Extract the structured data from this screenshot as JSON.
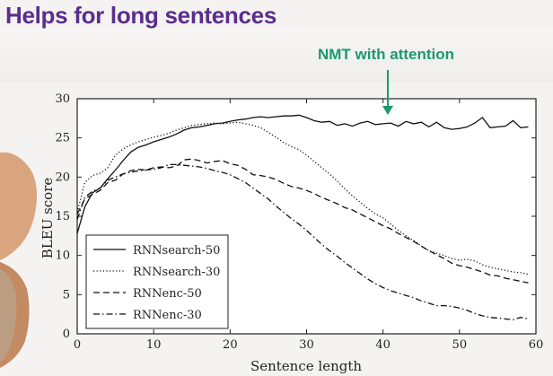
{
  "slide": {
    "title": "Helps for long sentences"
  },
  "colors": {
    "title": "#5b2d8e",
    "callout": "#1a9a6c",
    "line": "#111111",
    "background": "#f4f3f1"
  },
  "chart_data": {
    "type": "line",
    "title": "",
    "xlabel": "Sentence length",
    "ylabel": "BLEU score",
    "xlim": [
      0,
      60
    ],
    "ylim": [
      0,
      30
    ],
    "xticks": [
      0,
      10,
      20,
      30,
      40,
      50,
      60
    ],
    "yticks": [
      0,
      5,
      10,
      15,
      20,
      25,
      30
    ],
    "grid": false,
    "legend_position": "bottom-left",
    "annotation": {
      "text": "NMT with attention",
      "x": 41,
      "y": 27
    },
    "series": [
      {
        "name": "RNNsearch-50",
        "style": "solid",
        "x": [
          0,
          1,
          2,
          3,
          4,
          5,
          6,
          7,
          8,
          9,
          10,
          11,
          12,
          13,
          14,
          15,
          16,
          17,
          18,
          19,
          20,
          21,
          22,
          23,
          24,
          25,
          26,
          27,
          28,
          29,
          30,
          31,
          32,
          33,
          34,
          35,
          36,
          37,
          38,
          39,
          40,
          41,
          42,
          43,
          44,
          45,
          46,
          47,
          48,
          49,
          50,
          51,
          52,
          53,
          54,
          55,
          56,
          57,
          58,
          59
        ],
        "y": [
          12.8,
          16.2,
          18.0,
          18.6,
          19.8,
          20.9,
          22.1,
          23.2,
          23.8,
          24.1,
          24.5,
          24.8,
          25.1,
          25.5,
          26.0,
          26.3,
          26.4,
          26.6,
          26.8,
          26.9,
          27.1,
          27.3,
          27.4,
          27.6,
          27.7,
          27.6,
          27.7,
          27.8,
          27.8,
          27.9,
          27.6,
          27.2,
          27.0,
          27.1,
          26.6,
          26.8,
          26.5,
          26.9,
          27.1,
          26.7,
          26.8,
          26.9,
          26.5,
          27.1,
          26.8,
          27.0,
          26.4,
          27.0,
          26.3,
          26.1,
          26.2,
          26.4,
          26.9,
          27.6,
          26.3,
          26.4,
          26.5,
          27.2,
          26.3,
          26.4
        ]
      },
      {
        "name": "RNNsearch-30",
        "style": "dotted",
        "x": [
          0,
          1,
          2,
          3,
          4,
          5,
          6,
          7,
          8,
          9,
          10,
          11,
          12,
          13,
          14,
          15,
          16,
          17,
          18,
          19,
          20,
          21,
          22,
          23,
          24,
          25,
          26,
          27,
          28,
          29,
          30,
          31,
          32,
          33,
          34,
          35,
          36,
          37,
          38,
          39,
          40,
          41,
          42,
          43,
          44,
          45,
          46,
          47,
          48,
          49,
          50,
          51,
          52,
          53,
          54,
          55,
          56,
          57,
          58,
          59
        ],
        "y": [
          15.5,
          19.3,
          20.2,
          20.5,
          21.2,
          22.8,
          23.6,
          24.1,
          24.5,
          24.8,
          25.1,
          25.3,
          25.6,
          26.0,
          26.3,
          26.6,
          26.7,
          26.8,
          26.9,
          26.8,
          26.9,
          27.0,
          26.8,
          26.6,
          26.3,
          25.7,
          25.1,
          24.4,
          23.9,
          23.5,
          22.8,
          22.0,
          21.2,
          20.4,
          19.5,
          18.5,
          17.6,
          16.8,
          16.0,
          15.3,
          14.8,
          14.0,
          13.2,
          12.5,
          11.9,
          11.2,
          10.6,
          10.3,
          10.0,
          9.6,
          9.4,
          9.5,
          9.3,
          8.8,
          8.5,
          8.3,
          8.1,
          7.9,
          7.8,
          7.6
        ]
      },
      {
        "name": "RNNenc-50",
        "style": "dashed",
        "x": [
          0,
          1,
          2,
          3,
          4,
          5,
          6,
          7,
          8,
          9,
          10,
          11,
          12,
          13,
          14,
          15,
          16,
          17,
          18,
          19,
          20,
          21,
          22,
          23,
          24,
          25,
          26,
          27,
          28,
          29,
          30,
          31,
          32,
          33,
          34,
          35,
          36,
          37,
          38,
          39,
          40,
          41,
          42,
          43,
          44,
          45,
          46,
          47,
          48,
          49,
          50,
          51,
          52,
          53,
          54,
          55,
          56,
          57,
          58,
          59
        ],
        "y": [
          15.3,
          17.2,
          17.8,
          18.3,
          19.3,
          19.6,
          20.4,
          20.8,
          21.0,
          20.9,
          21.2,
          21.3,
          21.2,
          21.4,
          22.2,
          22.3,
          22.1,
          21.8,
          22.0,
          22.1,
          21.7,
          21.5,
          21.0,
          20.3,
          20.2,
          20.0,
          19.7,
          19.2,
          18.8,
          18.6,
          18.3,
          17.9,
          17.4,
          17.0,
          16.6,
          16.1,
          15.8,
          15.3,
          14.8,
          14.3,
          13.8,
          13.4,
          12.8,
          12.3,
          11.8,
          11.2,
          10.6,
          10.1,
          9.6,
          9.0,
          8.7,
          8.5,
          8.2,
          7.9,
          7.5,
          7.4,
          7.1,
          6.9,
          6.7,
          6.5
        ]
      },
      {
        "name": "RNNenc-30",
        "style": "dashdot",
        "x": [
          0,
          1,
          2,
          3,
          4,
          5,
          6,
          7,
          8,
          9,
          10,
          11,
          12,
          13,
          14,
          15,
          16,
          17,
          18,
          19,
          20,
          21,
          22,
          23,
          24,
          25,
          26,
          27,
          28,
          29,
          30,
          31,
          32,
          33,
          34,
          35,
          36,
          37,
          38,
          39,
          40,
          41,
          42,
          43,
          44,
          45,
          46,
          47,
          48,
          49,
          50,
          51,
          52,
          53,
          54,
          55,
          56,
          57,
          58,
          59
        ],
        "y": [
          14.6,
          17.4,
          18.2,
          18.6,
          19.6,
          20.0,
          20.4,
          20.6,
          20.8,
          20.9,
          21.0,
          21.2,
          21.6,
          21.6,
          21.5,
          21.4,
          21.3,
          21.1,
          20.8,
          20.6,
          20.3,
          19.8,
          19.3,
          18.6,
          17.9,
          17.2,
          16.3,
          15.5,
          14.7,
          14.0,
          13.2,
          12.3,
          11.4,
          10.6,
          9.9,
          9.1,
          8.4,
          7.7,
          7.0,
          6.4,
          5.9,
          5.5,
          5.2,
          4.9,
          4.6,
          4.2,
          3.9,
          3.6,
          3.6,
          3.5,
          3.3,
          3.0,
          2.6,
          2.3,
          2.1,
          2.0,
          1.9,
          1.8,
          2.1,
          1.9
        ]
      }
    ]
  }
}
